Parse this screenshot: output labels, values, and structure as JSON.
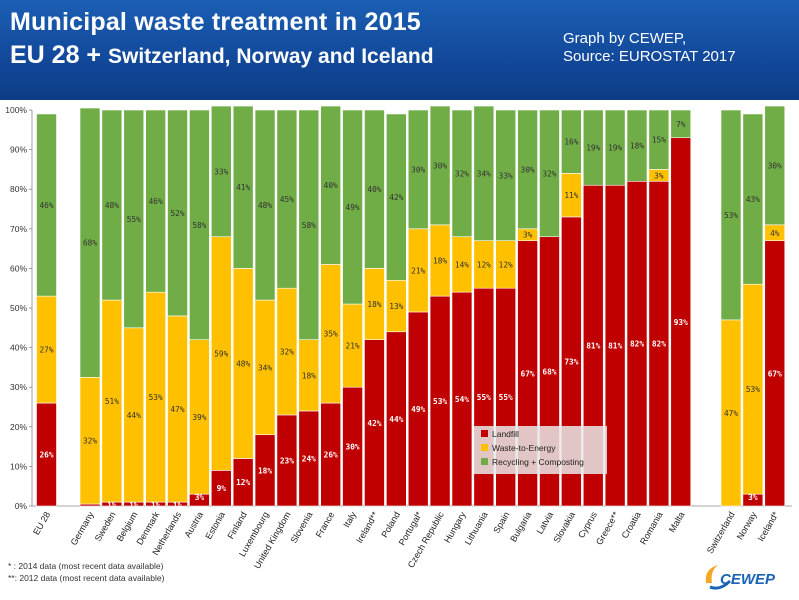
{
  "header": {
    "title_line1": "Municipal waste treatment in 2015",
    "title_line2_big": "EU 28 + ",
    "title_line2_small": "Switzerland, Norway and Iceland",
    "credit_line1": "Graph by CEWEP,",
    "credit_line2": "Source: EUROSTAT 2017"
  },
  "colors": {
    "landfill": "#c00000",
    "wte": "#ffc000",
    "recycling": "#70ad47",
    "header_bg": "#1b5fb4"
  },
  "footnotes": {
    "note1": "* : 2014 data (most recent data available)",
    "note2": "**: 2012 data (most recent data available)"
  },
  "logo": {
    "text": "CEWEP"
  },
  "chart_data": {
    "type": "bar",
    "stacked": true,
    "ylim": [
      0,
      100
    ],
    "yticks": [
      "0%",
      "10%",
      "20%",
      "30%",
      "40%",
      "50%",
      "60%",
      "70%",
      "80%",
      "90%",
      "100%"
    ],
    "legend": {
      "placement": "center-bottom",
      "entries": [
        "Landfill",
        "Waste-to-Energy",
        "Recycling + Composting"
      ]
    },
    "categories": [
      "EU 28",
      "Germany",
      "Sweden",
      "Belgium",
      "Denmark",
      "Netherlands",
      "Austria",
      "Estonia",
      "Finland",
      "Luxembourg",
      "United Kingdom",
      "Slovenia",
      "France",
      "Italy",
      "Ireland**",
      "Poland",
      "Portugal*",
      "Czech Republic",
      "Hungary",
      "Lithuania",
      "Spain",
      "Bulgaria",
      "Latvia",
      "Slovakia",
      "Cyprus",
      "Greece**",
      "Croatia",
      "Romania",
      "Malta",
      "Switzerland",
      "Norway",
      "Iceland*"
    ],
    "series": [
      {
        "name": "Landfill",
        "values": [
          26,
          0.5,
          1,
          1,
          1,
          1,
          3,
          9,
          12,
          18,
          23,
          24,
          26,
          30,
          42,
          44,
          49,
          53,
          54,
          55,
          55,
          67,
          68,
          73,
          81,
          81,
          82,
          82,
          93,
          0,
          3,
          67
        ]
      },
      {
        "name": "Waste-to-Energy",
        "values": [
          27,
          32,
          51,
          44,
          53,
          47,
          39,
          59,
          48,
          34,
          32,
          18,
          35,
          21,
          18,
          13,
          21,
          18,
          14,
          12,
          12,
          3,
          0,
          11,
          0,
          0,
          0,
          3,
          0,
          47,
          53,
          4
        ]
      },
      {
        "name": "Recycling + Composting",
        "values": [
          46,
          68,
          48,
          55,
          46,
          52,
          58,
          33,
          41,
          48,
          45,
          58,
          40,
          49,
          40,
          42,
          30,
          30,
          32,
          34,
          33,
          30,
          32,
          16,
          19,
          19,
          18,
          15,
          7,
          53,
          43,
          30
        ]
      }
    ],
    "data_labels": {
      "Landfill": [
        "26%",
        "",
        "1%",
        "1%",
        "1%",
        "1%",
        "3%",
        "9%",
        "12%",
        "18%",
        "23%",
        "24%",
        "26%",
        "30%",
        "42%",
        "44%",
        "49%",
        "53%",
        "54%",
        "55%",
        "55%",
        "67%",
        "68%",
        "73%",
        "81%",
        "81%",
        "82%",
        "82%",
        "93%",
        "",
        "3%",
        "67%"
      ],
      "Waste-to-Energy": [
        "27%",
        "32%",
        "51%",
        "44%",
        "53%",
        "47%",
        "39%",
        "59%",
        "48%",
        "34%",
        "32%",
        "18%",
        "35%",
        "21%",
        "18%",
        "13%",
        "21%",
        "18%",
        "14%",
        "12%",
        "12%",
        "3%",
        "",
        "11%",
        "",
        "",
        "",
        "3%",
        "",
        "47%",
        "53%",
        "4%"
      ],
      "Recycling + Composting": [
        "46%",
        "68%",
        "48%",
        "55%",
        "46%",
        "52%",
        "58%",
        "33%",
        "41%",
        "48%",
        "45%",
        "58%",
        "40%",
        "49%",
        "40%",
        "42%",
        "30%",
        "30%",
        "32%",
        "34%",
        "33%",
        "30%",
        "32%",
        "16%",
        "19%",
        "19%",
        "18%",
        "15%",
        "7%",
        "53%",
        "43%",
        "30%"
      ]
    }
  }
}
